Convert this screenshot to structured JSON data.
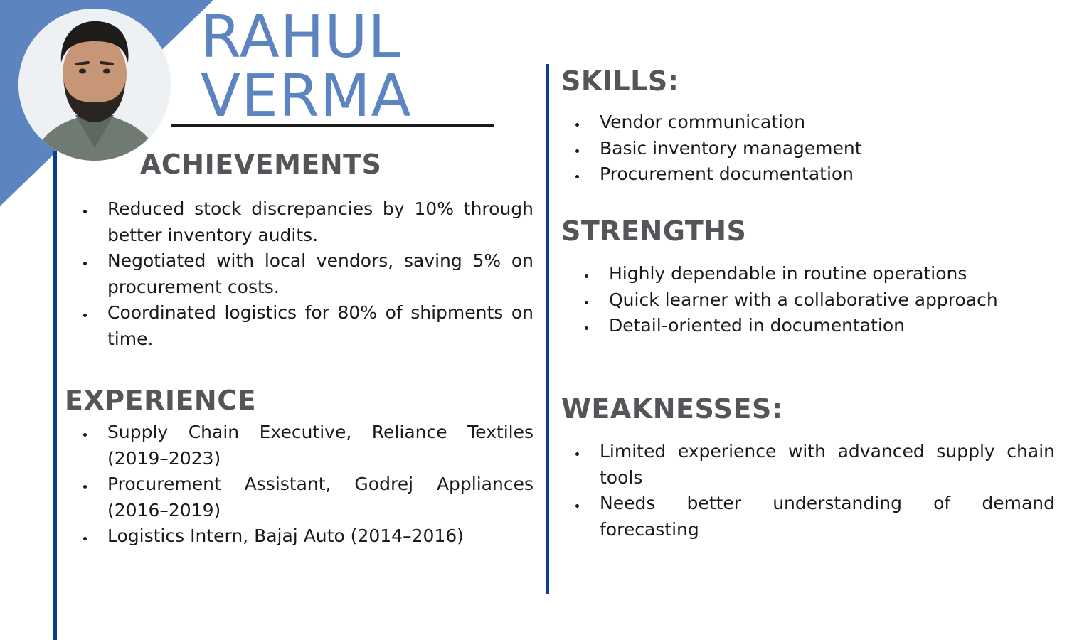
{
  "colors": {
    "accent": "#5b84c0",
    "rule": "#0d3b8e",
    "heading": "#555559"
  },
  "header": {
    "first_name": "RAHUL",
    "last_name": "VERMA"
  },
  "photo": {
    "icon": "profile-photo"
  },
  "achievements": {
    "title": "ACHIEVEMENTS",
    "items": [
      "Reduced stock discrepancies by 10% through better inventory audits.",
      "Negotiated with local vendors, saving 5% on procurement costs.",
      "Coordinated logistics for 80% of shipments on time."
    ]
  },
  "experience": {
    "title": "EXPERIENCE",
    "items": [
      "Supply Chain Executive, Reliance Textiles (2019–2023)",
      "Procurement Assistant, Godrej Appliances (2016–2019)",
      "Logistics Intern, Bajaj Auto (2014–2016)"
    ]
  },
  "skills": {
    "title": "SKILLS:",
    "items": [
      "Vendor communication",
      "Basic inventory management",
      "Procurement documentation"
    ]
  },
  "strengths": {
    "title": "STRENGTHS",
    "items": [
      "Highly dependable in routine operations",
      "Quick learner with a collaborative approach",
      "Detail-oriented in documentation"
    ]
  },
  "weaknesses": {
    "title": "WEAKNESSES:",
    "items": [
      "Limited experience with advanced supply chain tools",
      "Needs better understanding of demand forecasting"
    ]
  }
}
